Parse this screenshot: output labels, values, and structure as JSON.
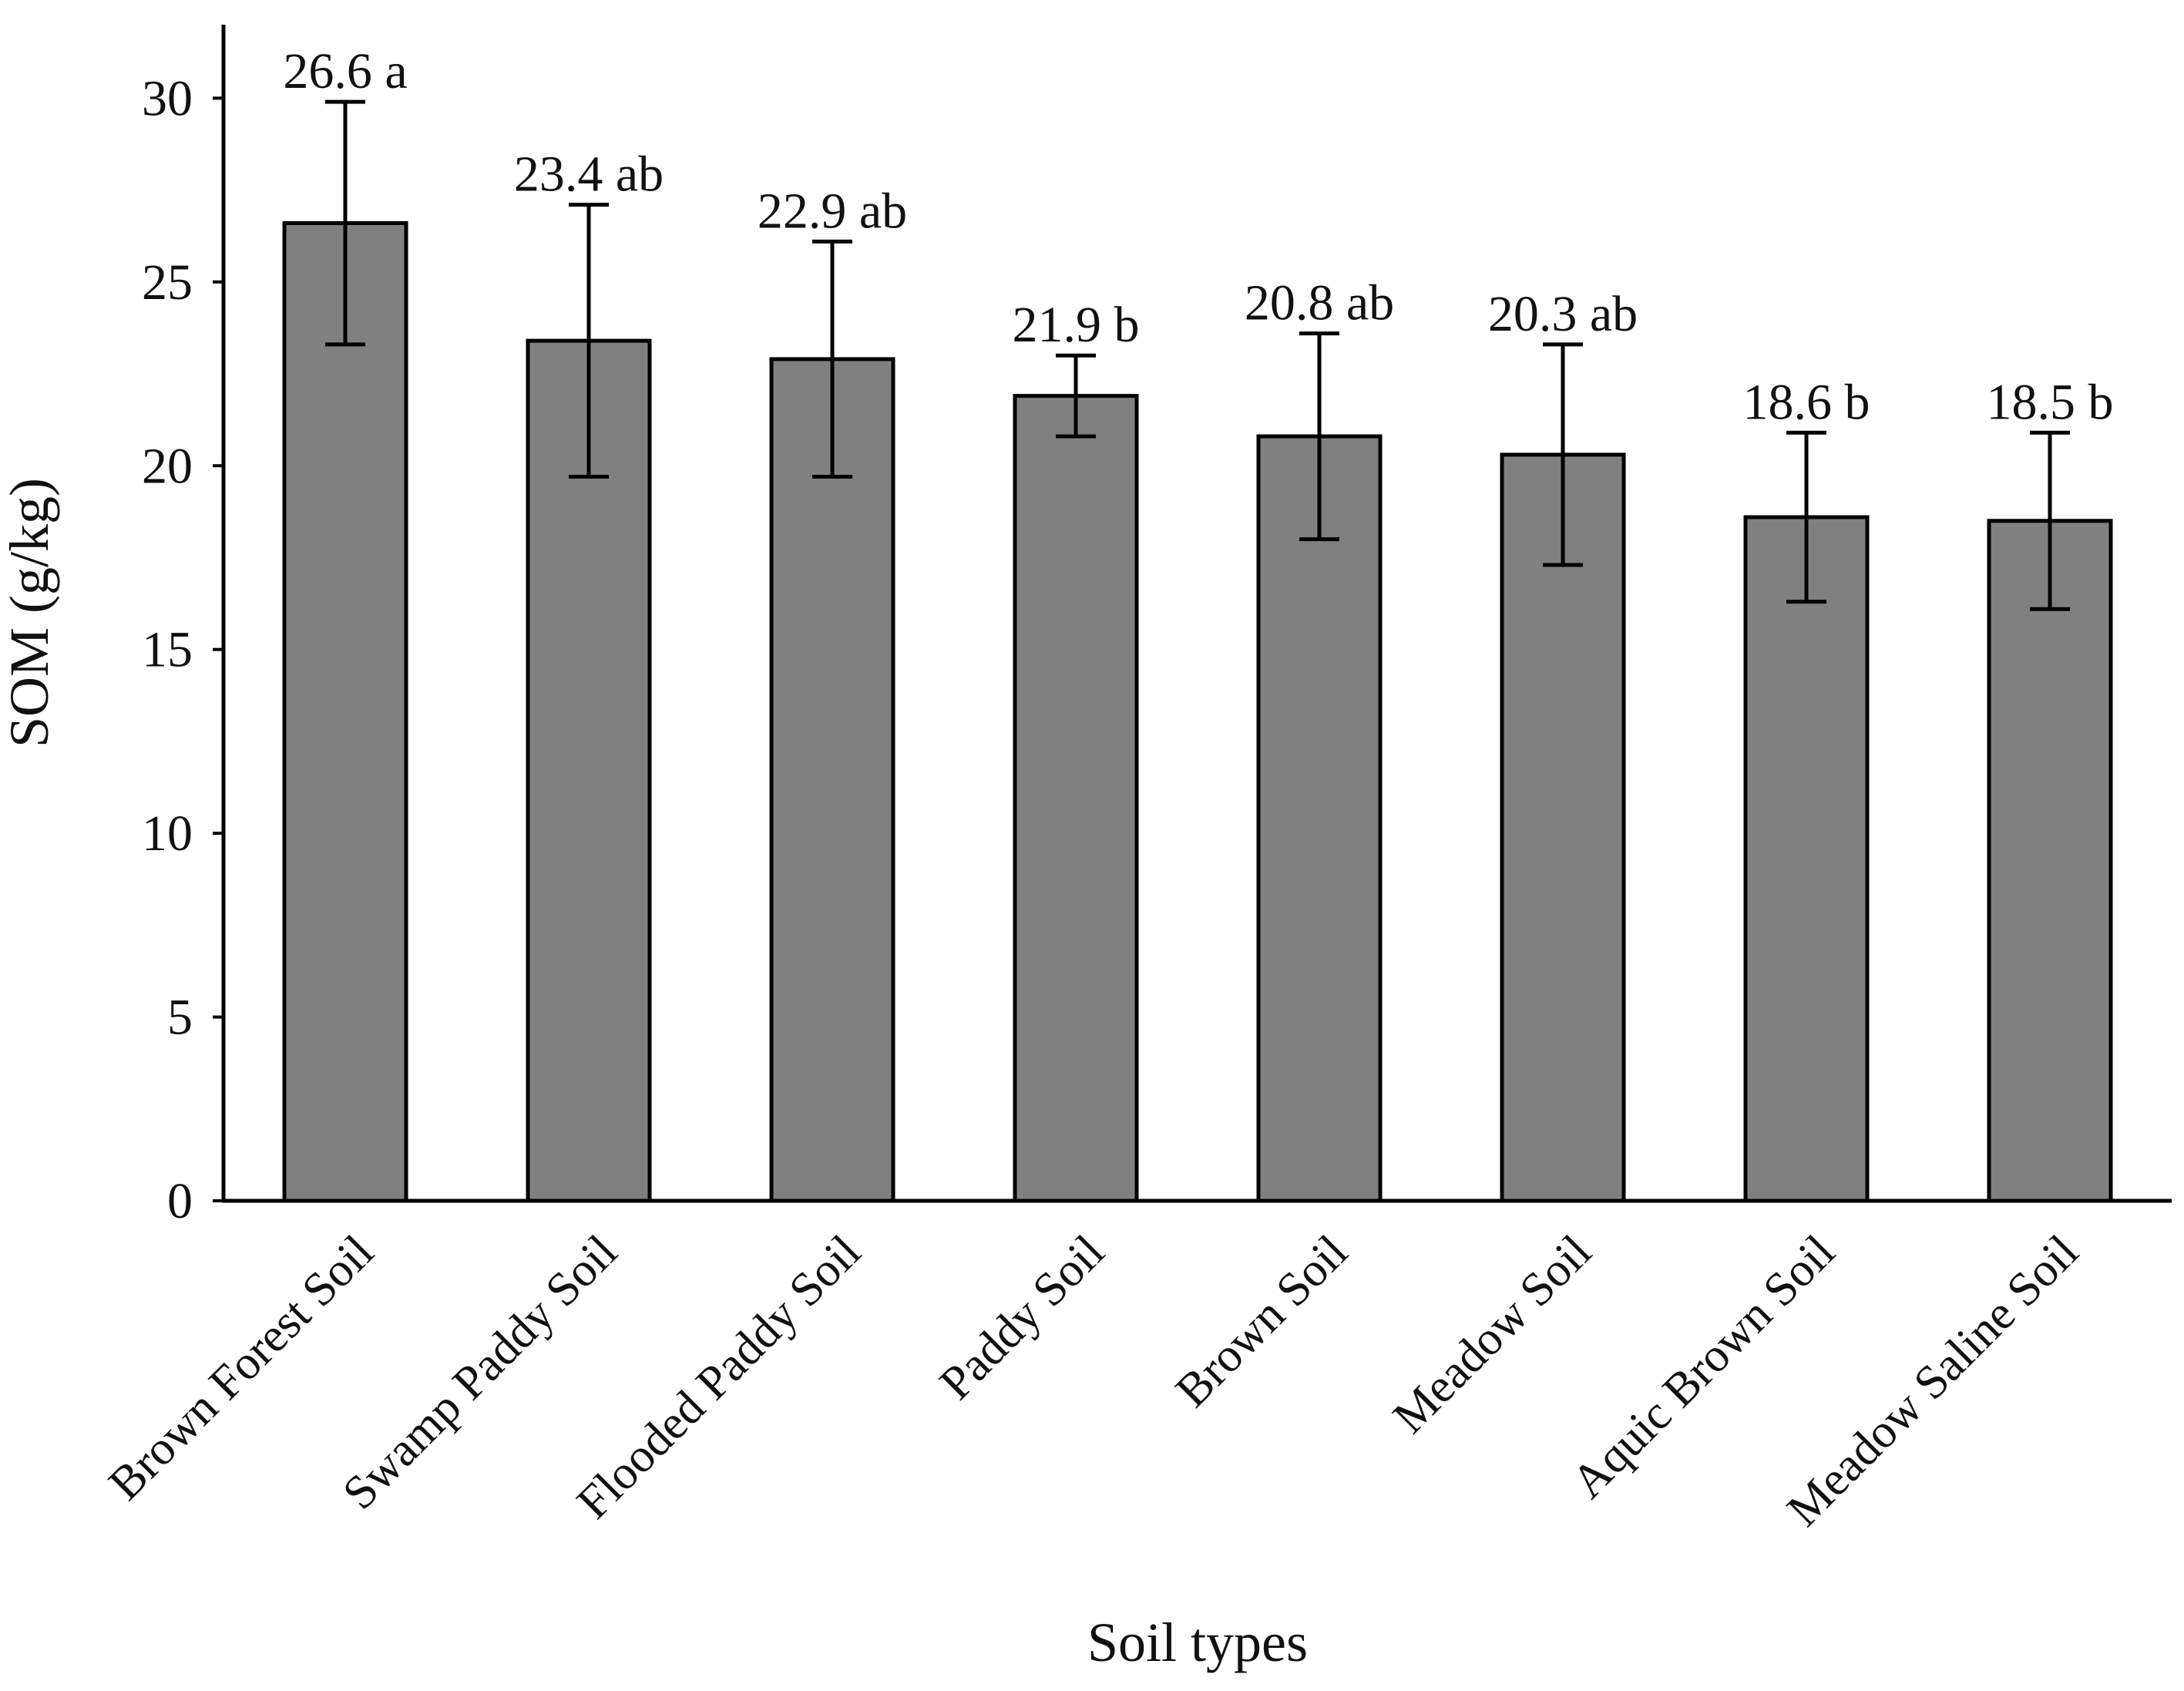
{
  "chart_data": {
    "type": "bar",
    "title": "",
    "xlabel": "Soil types",
    "ylabel": "SOM (g/kg)",
    "ylim": [
      0,
      32
    ],
    "yticks": [
      0,
      5,
      10,
      15,
      20,
      25,
      30
    ],
    "grid": false,
    "categories": [
      "Brown Forest Soil",
      "Swamp Paddy Soil",
      "Flooded Paddy Soil",
      "Paddy Soil",
      "Brown Soil",
      "Meadow Soil",
      "Aquic Brown Soil",
      "Meadow Saline Soil"
    ],
    "values": [
      26.6,
      23.4,
      22.9,
      21.9,
      20.8,
      20.3,
      18.6,
      18.5
    ],
    "errors": [
      3.3,
      3.7,
      3.2,
      1.1,
      2.8,
      3.0,
      2.3,
      2.4
    ],
    "data_labels": [
      "26.6 a",
      "23.4 ab",
      "22.9 ab",
      "21.9 b",
      "20.8 ab",
      "20.3 ab",
      "18.6 b",
      "18.5 b"
    ],
    "bar_color": "#808080",
    "edge_color": "#000000"
  }
}
